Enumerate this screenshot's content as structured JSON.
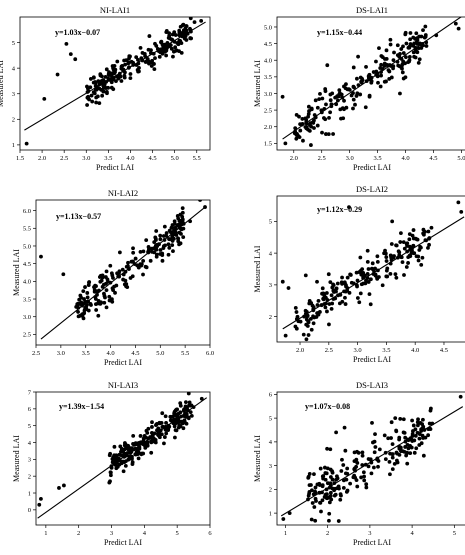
{
  "chart_data": [
    {
      "type": "scatter",
      "title": "NI-LAI1",
      "xlabel": "Predict LAI",
      "ylabel": "Measured LAI",
      "annotation": "y=1.03x−0.07",
      "xlim": [
        1.5,
        5.8
      ],
      "ylim": [
        0.8,
        6.0
      ],
      "xticks": [
        1.5,
        2.0,
        2.5,
        3.0,
        3.5,
        4.0,
        4.5,
        5.0,
        5.5
      ],
      "xtick_labels": [
        "1.5",
        "2.0",
        "2.5",
        "3.0",
        "3.5",
        "4.0",
        "4.5",
        "5.0",
        "5.5"
      ],
      "yticks": [
        1,
        2,
        3,
        4,
        5
      ],
      "ytick_labels": [
        "1",
        "2",
        "3",
        "4",
        "5"
      ],
      "fit": {
        "slope": 1.03,
        "intercept": -0.07,
        "x_range": [
          1.6,
          5.7
        ]
      },
      "outliers": [
        [
          1.65,
          1.05
        ],
        [
          2.05,
          2.8
        ],
        [
          2.35,
          3.75
        ],
        [
          2.55,
          4.95
        ],
        [
          2.65,
          4.55
        ],
        [
          2.75,
          4.35
        ],
        [
          3.05,
          3.1
        ],
        [
          5.45,
          5.8
        ],
        [
          5.6,
          5.85
        ],
        [
          5.2,
          5.4
        ]
      ],
      "cloud": {
        "n": 240,
        "x_range": [
          3.0,
          5.4
        ],
        "noise": 0.28,
        "seed": 11
      },
      "grid": false,
      "legend": "none"
    },
    {
      "type": "scatter",
      "title": "DS-LAI1",
      "xlabel": "Predict LAI",
      "ylabel": "Measured LAI",
      "annotation": "y=1.15x−0.44",
      "xlim": [
        1.7,
        5.1
      ],
      "ylim": [
        1.3,
        5.3
      ],
      "xticks": [
        2.0,
        2.5,
        3.0,
        3.5,
        4.0,
        4.5,
        5.0
      ],
      "xtick_labels": [
        "2.0",
        "2.5",
        "3.0",
        "3.5",
        "4.0",
        "4.5",
        "5.0"
      ],
      "yticks": [
        1.5,
        2.0,
        2.5,
        3.0,
        3.5,
        4.0,
        4.5,
        5.0
      ],
      "ytick_labels": [
        "1.5",
        "2.0",
        "2.5",
        "3.0",
        "3.5",
        "4.0",
        "4.5",
        "5.0"
      ],
      "fit": {
        "slope": 1.15,
        "intercept": -0.44,
        "x_range": [
          1.8,
          5.0
        ]
      },
      "outliers": [
        [
          1.8,
          2.9
        ],
        [
          1.85,
          1.5
        ],
        [
          2.05,
          1.75
        ],
        [
          2.6,
          3.85
        ],
        [
          4.55,
          4.75
        ],
        [
          4.9,
          5.1
        ],
        [
          4.95,
          4.95
        ],
        [
          3.9,
          3.0
        ]
      ],
      "cloud": {
        "n": 230,
        "x_range": [
          2.0,
          4.4
        ],
        "noise": 0.3,
        "seed": 23
      },
      "grid": false,
      "legend": "none"
    },
    {
      "type": "scatter",
      "title": "NI-LAI2",
      "xlabel": "Predict LAI",
      "ylabel": "Measured LAI",
      "annotation": "y=1.13x−0.57",
      "xlim": [
        2.5,
        6.0
      ],
      "ylim": [
        2.2,
        6.3
      ],
      "xticks": [
        2.5,
        3.0,
        3.5,
        4.0,
        4.5,
        5.0,
        5.5,
        6.0
      ],
      "xtick_labels": [
        "2.5",
        "3.0",
        "3.5",
        "4.0",
        "4.5",
        "5.0",
        "5.5",
        "6.0"
      ],
      "yticks": [
        2.5,
        3.0,
        3.5,
        4.0,
        4.5,
        5.0,
        5.5,
        6.0
      ],
      "ytick_labels": [
        "2.5",
        "3.0",
        "3.5",
        "4.0",
        "4.5",
        "5.0",
        "5.5",
        "6.0"
      ],
      "fit": {
        "slope": 1.13,
        "intercept": -0.57,
        "x_range": [
          2.6,
          5.9
        ]
      },
      "outliers": [
        [
          2.6,
          4.7
        ],
        [
          3.05,
          4.2
        ],
        [
          3.35,
          3.25
        ],
        [
          5.8,
          6.3
        ],
        [
          5.9,
          6.1
        ],
        [
          5.6,
          5.7
        ]
      ],
      "cloud": {
        "n": 230,
        "x_range": [
          3.3,
          5.5
        ],
        "noise": 0.27,
        "seed": 37
      },
      "grid": false,
      "legend": "none"
    },
    {
      "type": "scatter",
      "title": "DS-LAI2",
      "xlabel": "Predict LAI",
      "ylabel": "Measured LAI",
      "annotation": "y=1.12x−0.29",
      "xlim": [
        1.6,
        4.9
      ],
      "ylim": [
        1.2,
        5.8
      ],
      "xticks": [
        2.0,
        2.5,
        3.0,
        3.5,
        4.0,
        4.5
      ],
      "xtick_labels": [
        "2.0",
        "2.5",
        "3.0",
        "3.5",
        "4.0",
        "4.5"
      ],
      "yticks": [
        2,
        3,
        4,
        5
      ],
      "ytick_labels": [
        "2",
        "3",
        "4",
        "5"
      ],
      "fit": {
        "slope": 1.12,
        "intercept": -0.29,
        "x_range": [
          1.7,
          4.85
        ]
      },
      "outliers": [
        [
          1.7,
          3.1
        ],
        [
          1.8,
          2.9
        ],
        [
          1.75,
          1.4
        ],
        [
          2.85,
          5.45
        ],
        [
          4.75,
          5.6
        ],
        [
          4.8,
          5.3
        ],
        [
          3.6,
          5.0
        ],
        [
          2.1,
          3.3
        ]
      ],
      "cloud": {
        "n": 230,
        "x_range": [
          1.9,
          4.3
        ],
        "noise": 0.33,
        "seed": 53
      },
      "grid": false,
      "legend": "none"
    },
    {
      "type": "scatter",
      "title": "NI-LAI3",
      "xlabel": "Predict LAI",
      "ylabel": "Measured LAI",
      "annotation": "y=1.39x−1.54",
      "xlim": [
        0.7,
        6.0
      ],
      "ylim": [
        -0.9,
        7.0
      ],
      "xticks": [
        1,
        2,
        3,
        4,
        5,
        6
      ],
      "xtick_labels": [
        "1",
        "2",
        "3",
        "4",
        "5",
        "6"
      ],
      "yticks": [
        0,
        1,
        2,
        3,
        4,
        5,
        6,
        7
      ],
      "ytick_labels": [
        "0",
        "1",
        "2",
        "3",
        "4",
        "5",
        "6",
        "7"
      ],
      "fit": {
        "slope": 1.39,
        "intercept": -1.54,
        "x_range": [
          0.75,
          5.9
        ]
      },
      "outliers": [
        [
          0.8,
          0.3
        ],
        [
          0.85,
          0.65
        ],
        [
          1.4,
          1.3
        ],
        [
          1.55,
          1.45
        ],
        [
          5.75,
          6.6
        ],
        [
          5.5,
          6.1
        ]
      ],
      "cloud": {
        "n": 250,
        "x_range": [
          2.9,
          5.5
        ],
        "noise": 0.42,
        "seed": 71
      },
      "grid": false,
      "legend": "none"
    },
    {
      "type": "scatter",
      "title": "DS-LAI3",
      "xlabel": "Predict LAI",
      "ylabel": "Measured LAI",
      "annotation": "y=1.07x−0.08",
      "xlim": [
        0.8,
        5.3
      ],
      "ylim": [
        0.5,
        6.1
      ],
      "xticks": [
        1,
        2,
        3,
        4,
        5
      ],
      "xtick_labels": [
        "1",
        "2",
        "3",
        "4",
        "5"
      ],
      "yticks": [
        1,
        2,
        3,
        4,
        5,
        6
      ],
      "ytick_labels": [
        "1",
        "2",
        "3",
        "4",
        "5",
        "6"
      ],
      "fit": {
        "slope": 1.07,
        "intercept": -0.08,
        "x_range": [
          0.9,
          5.2
        ]
      },
      "outliers": [
        [
          0.95,
          0.75
        ],
        [
          1.1,
          1.0
        ],
        [
          5.15,
          5.9
        ],
        [
          2.2,
          4.4
        ],
        [
          2.4,
          4.6
        ],
        [
          3.05,
          4.8
        ],
        [
          3.6,
          5.0
        ],
        [
          4.0,
          4.9
        ]
      ],
      "cloud": {
        "n": 230,
        "x_range": [
          1.5,
          4.5
        ],
        "noise": 0.55,
        "seed": 89
      },
      "grid": false,
      "legend": "none"
    }
  ]
}
